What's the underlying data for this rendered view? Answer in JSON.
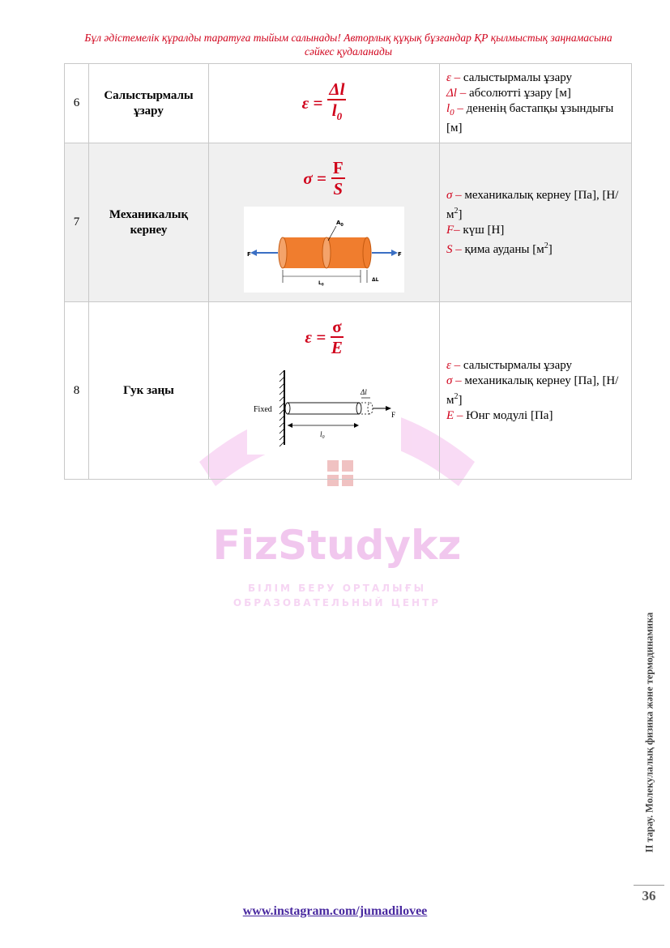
{
  "header": {
    "line1": "Бұл әдістемелік құралды таратуға тыйым салынады! Авторлық құқық бұзғандар ҚР қылмыстық заңнамасына",
    "line2": "сәйкес қудаланады"
  },
  "rows": [
    {
      "number": "6",
      "name_line1": "Салыстырмалы",
      "name_line2": "ұзару",
      "formula": {
        "lhs": "ε =",
        "num": "Δl",
        "den": "l",
        "den_sub": "0"
      },
      "desc": [
        {
          "sym": "ε –",
          "text": " салыстырмалы ұзару"
        },
        {
          "sym": "Δl –",
          "text": " абсолютті ұзару [м]"
        },
        {
          "sym": "l",
          "sub": "0",
          "sym2": " –",
          "text": " дененің бастапқы ұзындығы [м]"
        }
      ]
    },
    {
      "number": "7",
      "name_line1": "Механикалық",
      "name_line2": "кернеу",
      "formula": {
        "lhs": "σ =",
        "num": "F",
        "den": "S"
      },
      "figure": {
        "label_area": "A",
        "label_area_sub": "0",
        "label_force": "F",
        "label_length": "L",
        "label_length_sub": "0",
        "label_delta": "ΔL"
      },
      "desc": [
        {
          "sym": "σ –",
          "text": " механикалық кернеу [Па], [Н/м",
          "sup": "2",
          "text2": "]"
        },
        {
          "sym": "F–",
          "text": " күш [Н]"
        },
        {
          "sym": "S –",
          "text": " қима ауданы [м",
          "sup": "2",
          "text2": "]"
        }
      ]
    },
    {
      "number": "8",
      "name_line1": "Гук заңы",
      "formula": {
        "lhs": "ε =",
        "num": "σ",
        "den": "E"
      },
      "figure": {
        "label_fixed": "Fixed",
        "label_delta": "Δl",
        "label_force": "F",
        "label_length": "l",
        "label_length_sub": "0"
      },
      "desc": [
        {
          "sym": "ε –",
          "text": " салыстырмалы ұзару"
        },
        {
          "sym": "σ –",
          "text": " механикалық кернеу [Па], [Н/м",
          "sup": "2",
          "text2": "]"
        },
        {
          "sym": "E –",
          "text": " Юнг модулі [Па]"
        }
      ]
    }
  ],
  "watermark": {
    "brand": "FizStudykz",
    "line1": "БІЛІМ БЕРУ ОРТАЛЫҒЫ",
    "line2": "ОБРАЗОВАТЕЛЬНЫЙ ЦЕНТР"
  },
  "side_label": "II тарау. Молекулалық физика және термодинамика",
  "page_number": "36",
  "footer_link": "www.instagram.com/jumadilovee",
  "colors": {
    "accent_red": "#d0021b",
    "link": "#4a2aa0",
    "orange": "#f07d2e",
    "arrow_blue": "#3a6fc4",
    "watermark_pink": "#e9a3e3"
  }
}
